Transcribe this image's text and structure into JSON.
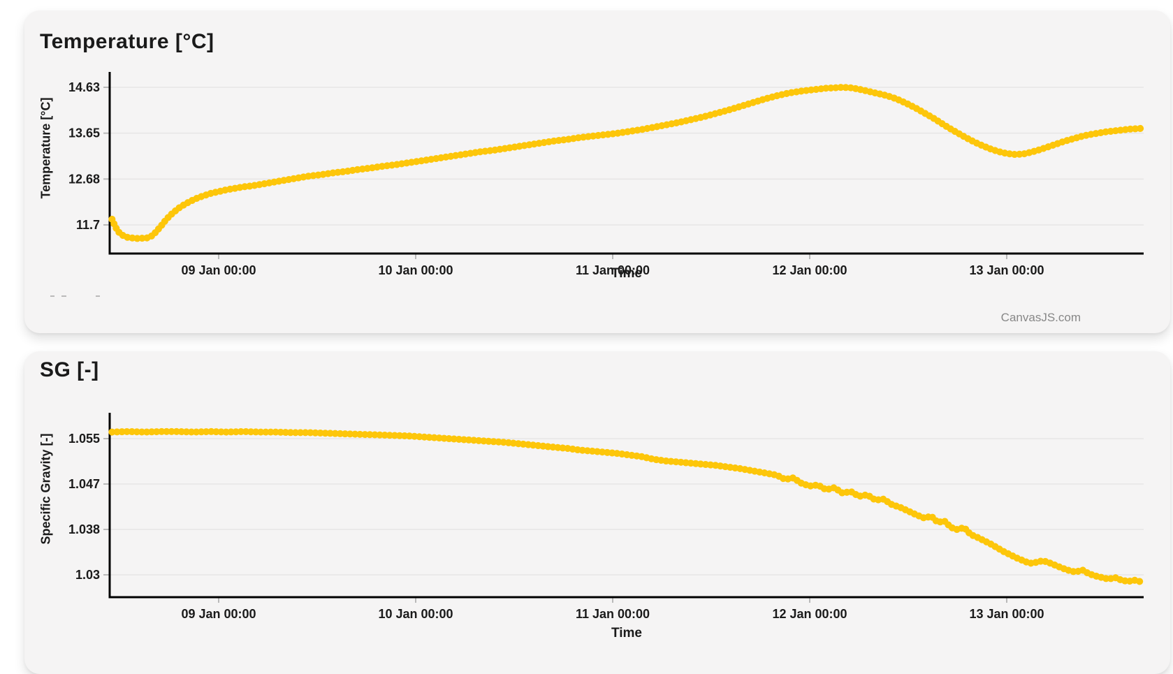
{
  "page": {
    "credit": "CanvasJS.com"
  },
  "chart_data": [
    {
      "type": "line",
      "title": "Temperature [°C]",
      "xlabel": "Time",
      "ylabel": "Temperature [°C]",
      "legend": "none",
      "grid": "horizontal",
      "marker_color": "#FDC60A",
      "marker_style": "thick overlapping round dots",
      "series_name": "temperature",
      "x_tick_labels": [
        "09 Jan 00:00",
        "10 Jan 00:00",
        "11 Jan 00:00",
        "12 Jan 00:00",
        "13 Jan 00:00"
      ],
      "x_tick_hours": [
        24,
        48,
        72,
        96,
        120
      ],
      "x_unit": "hours since 08 Jan 00:00",
      "x_range_hours": [
        10.7,
        136.7
      ],
      "y_tick_labels": [
        "14.63",
        "13.65",
        "12.68",
        "11.7"
      ],
      "y_range": [
        11.1,
        14.95
      ],
      "points": [
        [
          11,
          11.82
        ],
        [
          11.4,
          11.66
        ],
        [
          11.8,
          11.55
        ],
        [
          12.2,
          11.49
        ],
        [
          12.6,
          11.45
        ],
        [
          13,
          11.43
        ],
        [
          13.5,
          11.42
        ],
        [
          14,
          11.41
        ],
        [
          14.5,
          11.42
        ],
        [
          15,
          11.41
        ],
        [
          15.4,
          11.43
        ],
        [
          15.8,
          11.46
        ],
        [
          16.2,
          11.52
        ],
        [
          16.6,
          11.6
        ],
        [
          17,
          11.68
        ],
        [
          17.4,
          11.77
        ],
        [
          17.8,
          11.85
        ],
        [
          18.2,
          11.92
        ],
        [
          18.6,
          11.98
        ],
        [
          19,
          12.04
        ],
        [
          19.5,
          12.1
        ],
        [
          20,
          12.15
        ],
        [
          20.5,
          12.2
        ],
        [
          21,
          12.24
        ],
        [
          21.5,
          12.28
        ],
        [
          22,
          12.31
        ],
        [
          22.5,
          12.34
        ],
        [
          23,
          12.37
        ],
        [
          23.5,
          12.39
        ],
        [
          24,
          12.41
        ],
        [
          25,
          12.45
        ],
        [
          26,
          12.48
        ],
        [
          27,
          12.51
        ],
        [
          28,
          12.53
        ],
        [
          29,
          12.56
        ],
        [
          30,
          12.59
        ],
        [
          31,
          12.62
        ],
        [
          32,
          12.65
        ],
        [
          33,
          12.68
        ],
        [
          34,
          12.71
        ],
        [
          35,
          12.74
        ],
        [
          36.5,
          12.77
        ],
        [
          38,
          12.81
        ],
        [
          39.5,
          12.84
        ],
        [
          41,
          12.88
        ],
        [
          42.5,
          12.91
        ],
        [
          44,
          12.95
        ],
        [
          45.5,
          12.98
        ],
        [
          47,
          13.02
        ],
        [
          48.5,
          13.06
        ],
        [
          50,
          13.1
        ],
        [
          51.5,
          13.14
        ],
        [
          53,
          13.18
        ],
        [
          54.5,
          13.22
        ],
        [
          56,
          13.26
        ],
        [
          57.5,
          13.29
        ],
        [
          59,
          13.33
        ],
        [
          60.5,
          13.37
        ],
        [
          62,
          13.41
        ],
        [
          63.5,
          13.45
        ],
        [
          65,
          13.49
        ],
        [
          66.5,
          13.52
        ],
        [
          68,
          13.56
        ],
        [
          69.5,
          13.59
        ],
        [
          71,
          13.62
        ],
        [
          72.5,
          13.65
        ],
        [
          74,
          13.69
        ],
        [
          75.5,
          13.73
        ],
        [
          77,
          13.78
        ],
        [
          78.5,
          13.83
        ],
        [
          80,
          13.88
        ],
        [
          81.5,
          13.94
        ],
        [
          83,
          14.0
        ],
        [
          84.5,
          14.07
        ],
        [
          86,
          14.14
        ],
        [
          87.5,
          14.22
        ],
        [
          89,
          14.3
        ],
        [
          90.5,
          14.38
        ],
        [
          92,
          14.45
        ],
        [
          93.5,
          14.51
        ],
        [
          95,
          14.55
        ],
        [
          96,
          14.57
        ],
        [
          97,
          14.59
        ],
        [
          98,
          14.61
        ],
        [
          99,
          14.62
        ],
        [
          100,
          14.63
        ],
        [
          101,
          14.62
        ],
        [
          102,
          14.59
        ],
        [
          103,
          14.55
        ],
        [
          104,
          14.51
        ],
        [
          105,
          14.47
        ],
        [
          106,
          14.42
        ],
        [
          107,
          14.35
        ],
        [
          108,
          14.27
        ],
        [
          109,
          14.18
        ],
        [
          110,
          14.08
        ],
        [
          111,
          13.98
        ],
        [
          112,
          13.87
        ],
        [
          113,
          13.76
        ],
        [
          114,
          13.66
        ],
        [
          115,
          13.56
        ],
        [
          116,
          13.47
        ],
        [
          117,
          13.39
        ],
        [
          118,
          13.32
        ],
        [
          119,
          13.26
        ],
        [
          120,
          13.22
        ],
        [
          121,
          13.2
        ],
        [
          122,
          13.21
        ],
        [
          123,
          13.25
        ],
        [
          124,
          13.3
        ],
        [
          125,
          13.36
        ],
        [
          126,
          13.42
        ],
        [
          127,
          13.48
        ],
        [
          128,
          13.53
        ],
        [
          129,
          13.58
        ],
        [
          130,
          13.62
        ],
        [
          131,
          13.65
        ],
        [
          132,
          13.68
        ],
        [
          133,
          13.7
        ],
        [
          134,
          13.72
        ],
        [
          135,
          13.74
        ],
        [
          136,
          13.75
        ],
        [
          136.7,
          13.76
        ]
      ]
    },
    {
      "type": "line",
      "title": "SG [-]",
      "xlabel": "Time",
      "ylabel": "Specific Gravity [-]",
      "legend": "none",
      "grid": "horizontal",
      "marker_color": "#FDC60A",
      "marker_style": "thick overlapping round dots",
      "series_name": "specific-gravity",
      "x_tick_labels": [
        "09 Jan 00:00",
        "10 Jan 00:00",
        "11 Jan 00:00",
        "12 Jan 00:00",
        "13 Jan 00:00"
      ],
      "x_tick_hours": [
        24,
        48,
        72,
        96,
        120
      ],
      "x_unit": "hours since 08 Jan 00:00",
      "x_range_hours": [
        10.7,
        136.7
      ],
      "y_tick_labels": [
        "1.055",
        "1.047",
        "1.038",
        "1.03"
      ],
      "y_range": [
        1.026,
        1.059
      ],
      "points": [
        [
          11,
          1.0562
        ],
        [
          13,
          1.0563
        ],
        [
          15,
          1.0562
        ],
        [
          17,
          1.0563
        ],
        [
          19,
          1.0563
        ],
        [
          21,
          1.0562
        ],
        [
          23,
          1.0563
        ],
        [
          25,
          1.0562
        ],
        [
          27,
          1.0563
        ],
        [
          29,
          1.0562
        ],
        [
          31,
          1.0562
        ],
        [
          33,
          1.0561
        ],
        [
          35,
          1.0561
        ],
        [
          37,
          1.056
        ],
        [
          39,
          1.0559
        ],
        [
          41,
          1.0558
        ],
        [
          43,
          1.0557
        ],
        [
          45,
          1.0556
        ],
        [
          47,
          1.0555
        ],
        [
          49,
          1.0553
        ],
        [
          51,
          1.0551
        ],
        [
          53,
          1.0549
        ],
        [
          55,
          1.0547
        ],
        [
          57,
          1.0545
        ],
        [
          59,
          1.0543
        ],
        [
          61,
          1.054
        ],
        [
          63,
          1.0537
        ],
        [
          65,
          1.0534
        ],
        [
          66.5,
          1.0532
        ],
        [
          68,
          1.0529
        ],
        [
          69.5,
          1.0527
        ],
        [
          71,
          1.0525
        ],
        [
          72.5,
          1.0523
        ],
        [
          74,
          1.052
        ],
        [
          75.5,
          1.0517
        ],
        [
          77,
          1.0512
        ],
        [
          78.5,
          1.0509
        ],
        [
          80,
          1.0507
        ],
        [
          81.5,
          1.0505
        ],
        [
          83,
          1.0503
        ],
        [
          84.5,
          1.0501
        ],
        [
          86,
          1.0498
        ],
        [
          87.5,
          1.0495
        ],
        [
          89,
          1.0491
        ],
        [
          90.5,
          1.0487
        ],
        [
          92,
          1.0483
        ],
        [
          93,
          1.0475
        ],
        [
          94,
          1.0478
        ],
        [
          95,
          1.0468
        ],
        [
          96,
          1.0463
        ],
        [
          97,
          1.0465
        ],
        [
          98,
          1.0456
        ],
        [
          99,
          1.046
        ],
        [
          100,
          1.045
        ],
        [
          101,
          1.0453
        ],
        [
          102,
          1.0444
        ],
        [
          103,
          1.0447
        ],
        [
          104,
          1.0437
        ],
        [
          105,
          1.0439
        ],
        [
          106,
          1.0429
        ],
        [
          107,
          1.0424
        ],
        [
          108,
          1.0417
        ],
        [
          109,
          1.041
        ],
        [
          110,
          1.0404
        ],
        [
          110.8,
          1.0408
        ],
        [
          111.6,
          1.0396
        ],
        [
          112.4,
          1.0399
        ],
        [
          113.2,
          1.0387
        ],
        [
          114,
          1.0383
        ],
        [
          114.8,
          1.0387
        ],
        [
          115.6,
          1.0374
        ],
        [
          116.4,
          1.0369
        ],
        [
          117.2,
          1.0363
        ],
        [
          118,
          1.0357
        ],
        [
          118.8,
          1.035
        ],
        [
          119.6,
          1.0343
        ],
        [
          120.4,
          1.0337
        ],
        [
          121.2,
          1.0331
        ],
        [
          122,
          1.0326
        ],
        [
          122.8,
          1.0321
        ],
        [
          123.6,
          1.0323
        ],
        [
          124.4,
          1.0326
        ],
        [
          125.2,
          1.0322
        ],
        [
          126,
          1.0317
        ],
        [
          126.8,
          1.0312
        ],
        [
          127.6,
          1.0308
        ],
        [
          128.4,
          1.0305
        ],
        [
          129.2,
          1.0309
        ],
        [
          130,
          1.0302
        ],
        [
          130.8,
          1.0298
        ],
        [
          131.6,
          1.0295
        ],
        [
          132.4,
          1.0292
        ],
        [
          133.2,
          1.0295
        ],
        [
          134,
          1.029
        ],
        [
          134.8,
          1.0288
        ],
        [
          135.6,
          1.029
        ],
        [
          136.4,
          1.0287
        ]
      ]
    }
  ]
}
